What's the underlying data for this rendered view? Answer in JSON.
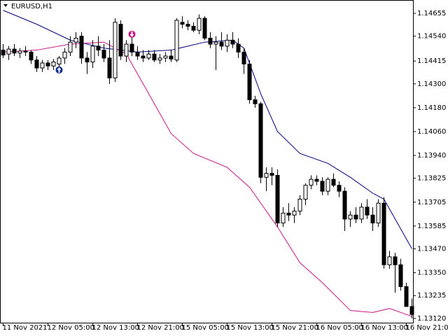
{
  "chart_data": {
    "type": "candlestick",
    "title": "EURUSD,H1",
    "open": [
      1.1447,
      1.1445,
      1.14475,
      1.14455,
      1.14465,
      1.1446,
      1.1442,
      1.1438,
      1.14405,
      1.1439,
      1.144,
      1.1443,
      1.1446,
      1.1451,
      1.1454,
      1.1443,
      1.1441,
      1.1449,
      1.1447,
      1.1443,
      1.1433,
      1.146,
      1.1444,
      1.145,
      1.1446,
      1.1444,
      1.1443,
      1.1445,
      1.1442,
      1.1443,
      1.1444,
      1.1442,
      1.1461,
      1.146,
      1.1459,
      1.1457,
      1.1463,
      1.1453,
      1.145,
      1.1451,
      1.1449,
      1.1452,
      1.145,
      1.1446,
      1.144,
      1.1422,
      1.142,
      1.1383,
      1.1385,
      1.1384,
      1.136,
      1.1365,
      1.1364,
      1.1366,
      1.1372,
      1.1379,
      1.1382,
      1.1381,
      1.1376,
      1.1382,
      1.1379,
      1.1376,
      1.1362,
      1.1364,
      1.1362,
      1.1368,
      1.1364,
      1.136,
      1.137,
      1.1339,
      1.1343,
      1.1339,
      1.1328,
      1.1318
    ],
    "high": [
      1.145,
      1.1449,
      1.145,
      1.1448,
      1.1449,
      1.1447,
      1.1444,
      1.1442,
      1.1442,
      1.14425,
      1.1444,
      1.1448,
      1.1454,
      1.1456,
      1.1456,
      1.1446,
      1.1452,
      1.1454,
      1.145,
      1.1452,
      1.1463,
      1.1462,
      1.1452,
      1.1454,
      1.1449,
      1.1447,
      1.1447,
      1.1447,
      1.1445,
      1.1446,
      1.1447,
      1.1463,
      1.1464,
      1.1462,
      1.1461,
      1.1465,
      1.1464,
      1.1456,
      1.1454,
      1.1456,
      1.1455,
      1.1456,
      1.1453,
      1.1448,
      1.1442,
      1.1424,
      1.1421,
      1.1388,
      1.1388,
      1.1387,
      1.1368,
      1.137,
      1.1368,
      1.1374,
      1.138,
      1.1384,
      1.1384,
      1.1383,
      1.1383,
      1.1385,
      1.1381,
      1.1378,
      1.1366,
      1.1368,
      1.137,
      1.1372,
      1.1368,
      1.1372,
      1.1373,
      1.1346,
      1.1345,
      1.1342,
      1.133,
      1.1322
    ],
    "low": [
      1.1443,
      1.1442,
      1.1444,
      1.1443,
      1.1444,
      1.144,
      1.1436,
      1.1436,
      1.1437,
      1.1437,
      1.1438,
      1.144,
      1.1444,
      1.1448,
      1.144,
      1.1435,
      1.1438,
      1.1444,
      1.1441,
      1.143,
      1.1431,
      1.1442,
      1.1441,
      1.1444,
      1.1442,
      1.1441,
      1.1442,
      1.1441,
      1.144,
      1.1441,
      1.1441,
      1.1441,
      1.1458,
      1.1457,
      1.1456,
      1.1455,
      1.1452,
      1.1448,
      1.1437,
      1.1447,
      1.1446,
      1.1448,
      1.1443,
      1.1435,
      1.142,
      1.1418,
      1.138,
      1.1376,
      1.1379,
      1.1358,
      1.1358,
      1.1361,
      1.136,
      1.1364,
      1.1369,
      1.1377,
      1.1379,
      1.1374,
      1.1374,
      1.1378,
      1.1373,
      1.1356,
      1.1358,
      1.136,
      1.136,
      1.1362,
      1.1356,
      1.1358,
      1.1337,
      1.1337,
      1.1325,
      1.1326,
      1.1318,
      1.1312
    ],
    "close": [
      1.14445,
      1.14475,
      1.14455,
      1.14465,
      1.1446,
      1.1442,
      1.1438,
      1.14405,
      1.1439,
      1.1441,
      1.1443,
      1.1446,
      1.1451,
      1.1453,
      1.1443,
      1.1441,
      1.1449,
      1.1447,
      1.1443,
      1.1433,
      1.1461,
      1.1444,
      1.145,
      1.1446,
      1.1444,
      1.1443,
      1.1445,
      1.1442,
      1.1443,
      1.1444,
      1.14425,
      1.1462,
      1.146,
      1.1459,
      1.1457,
      1.1463,
      1.1453,
      1.145,
      1.1451,
      1.1449,
      1.1452,
      1.145,
      1.1446,
      1.144,
      1.1422,
      1.142,
      1.1383,
      1.1385,
      1.1384,
      1.136,
      1.1365,
      1.1364,
      1.1366,
      1.1372,
      1.1379,
      1.1382,
      1.1381,
      1.1376,
      1.1382,
      1.1379,
      1.1376,
      1.1362,
      1.1364,
      1.1362,
      1.1368,
      1.1364,
      1.136,
      1.137,
      1.1339,
      1.1343,
      1.1339,
      1.1328,
      1.1318,
      1.1314
    ],
    "series": [
      {
        "color": "#000080",
        "x": [
          0,
          6,
          12,
          18,
          24,
          30,
          36,
          41,
          43,
          46,
          49,
          53,
          58,
          62,
          66,
          68,
          73
        ],
        "values": [
          1.1467,
          1.146,
          1.1452,
          1.1448,
          1.1446,
          1.1447,
          1.1451,
          1.1452,
          1.1448,
          1.1425,
          1.1406,
          1.1395,
          1.139,
          1.1383,
          1.1375,
          1.1372,
          1.1347
        ]
      },
      {
        "color": "#c71585",
        "x": [
          0,
          6,
          12,
          18,
          22,
          26,
          30,
          34,
          40,
          44,
          49,
          53,
          57,
          62,
          66,
          69,
          73
        ],
        "values": [
          1.1446,
          1.1447,
          1.145,
          1.1451,
          1.1445,
          1.1425,
          1.1405,
          1.1395,
          1.1388,
          1.1378,
          1.1358,
          1.134,
          1.133,
          1.1316,
          1.1315,
          1.1317,
          1.1313
        ]
      }
    ],
    "signals": [
      {
        "x": 10,
        "value": 1.1437,
        "direction": "up",
        "color": "#0a2a8c"
      },
      {
        "x": 23,
        "value": 1.1455,
        "direction": "down",
        "color": "#c71585"
      }
    ],
    "ylim": [
      1.13095,
      1.14722
    ],
    "yticks": [
      1.14655,
      {
        "value": 1.1454,
        "label": "1.14540"
      },
      1.14415,
      {
        "value": 1.143,
        "label": "1.14300"
      },
      {
        "value": 1.1418,
        "label": "1.14180"
      },
      {
        "value": 1.1406,
        "label": "1.14060"
      },
      {
        "value": 1.1394,
        "label": "1.13940"
      },
      1.13825,
      1.13705,
      1.13585,
      {
        "value": 1.1347,
        "label": "1.13470"
      },
      {
        "value": 1.1335,
        "label": "1.13350"
      },
      1.13235,
      {
        "value": 1.1312,
        "label": "1.13120"
      }
    ],
    "xticks": [
      {
        "value": 0,
        "label": "11 Nov 2021"
      },
      {
        "value": 8,
        "label": "12 Nov 05:00"
      },
      {
        "value": 16,
        "label": "12 Nov 13:00"
      },
      {
        "value": 24,
        "label": "12 Nov 21:00"
      },
      {
        "value": 32,
        "label": "15 Nov 05:00"
      },
      {
        "value": 40,
        "label": "15 Nov 13:00"
      },
      {
        "value": 48,
        "label": "15 Nov 21:00"
      },
      {
        "value": 56,
        "label": "16 Nov 05:00"
      },
      {
        "value": 64,
        "label": "16 Nov 13:00"
      },
      {
        "value": 72,
        "label": "16 Nov 21:00"
      }
    ]
  }
}
